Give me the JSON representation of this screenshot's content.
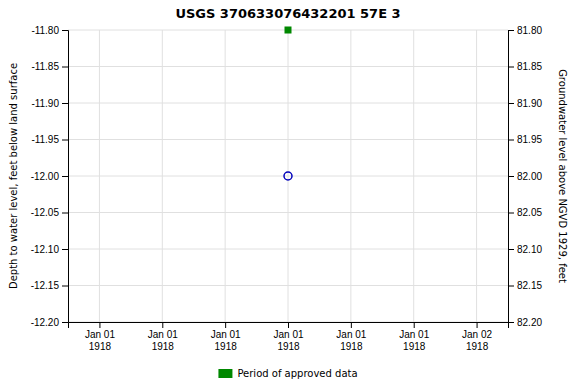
{
  "chart_data": {
    "type": "scatter",
    "title": "USGS 370633076432201 57E  3",
    "y_label": "Depth to water level, feet below land surface",
    "y2_label": "Groundwater level above NGVD 1929, feet",
    "categories": [
      "Jan 01\n1918",
      "Jan 01\n1918",
      "Jan 01\n1918",
      "Jan 01\n1918",
      "Jan 01\n1918",
      "Jan 01\n1918",
      "Jan 02\n1918"
    ],
    "series": [
      {
        "color": "#0000bb",
        "marker": "circle",
        "values": [
          null,
          null,
          null,
          -12.0,
          null,
          null,
          null
        ]
      },
      {
        "name": "Period of approved data",
        "color": "#008800",
        "marker": "square",
        "values": [
          null,
          null,
          null,
          -11.8,
          null,
          null,
          null
        ]
      }
    ],
    "ylim": [
      -12.2,
      -11.8
    ],
    "yticks": [
      {
        "value": -12.2,
        "label": "-12.20"
      },
      -12.15,
      {
        "value": -12.1,
        "label": "-12.10"
      },
      -12.05,
      {
        "value": -12.0,
        "label": "-12.00"
      },
      -11.95,
      {
        "value": -11.9,
        "label": "-11.90"
      },
      -11.85,
      {
        "value": -11.8,
        "label": "-11.80"
      }
    ],
    "y2lim": [
      82.2,
      81.8
    ],
    "y2ticks": [
      {
        "value": 82.2,
        "label": "82.20"
      },
      82.15,
      {
        "value": 82.1,
        "label": "82.10"
      },
      82.05,
      {
        "value": 82.0,
        "label": "82.00"
      },
      81.95,
      {
        "value": 81.9,
        "label": "81.90"
      },
      81.85,
      {
        "value": 81.8,
        "label": "81.80"
      }
    ],
    "grid": true,
    "legend": "bottom"
  }
}
